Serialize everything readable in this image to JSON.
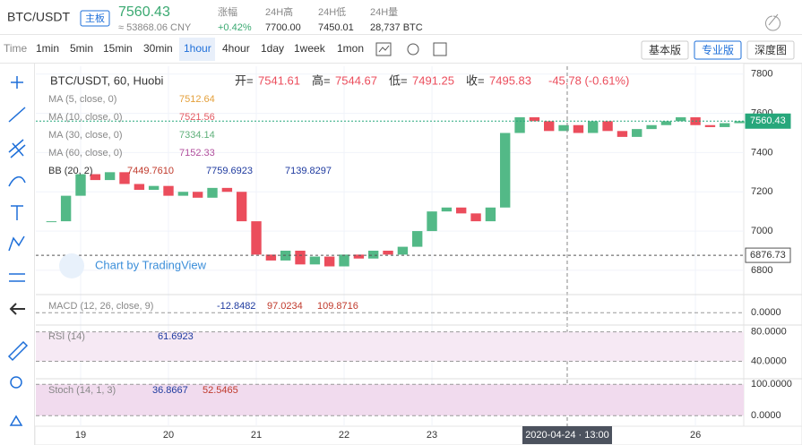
{
  "header": {
    "pair": "BTC/USDT",
    "badge": "主板",
    "price": "7560.43",
    "cny": "≈ 53868.06 CNY",
    "stats": [
      {
        "label": "涨幅",
        "value": "+0.42%"
      },
      {
        "label": "24H高",
        "value": "7700.00"
      },
      {
        "label": "24H低",
        "value": "7450.01"
      },
      {
        "label": "24H量",
        "value": "28,737 BTC"
      }
    ]
  },
  "toolbar": {
    "time_label": "Time",
    "intervals": [
      "1min",
      "5min",
      "15min",
      "30min",
      "1hour",
      "4hour",
      "1day",
      "1week",
      "1mon"
    ],
    "active_interval": 4,
    "views": [
      "基本版",
      "专业版",
      "深度图"
    ],
    "active_view": 1
  },
  "chart_data": {
    "type": "candlestick",
    "title": "BTC/USDT, 60, Huobi",
    "ohlc": [
      {
        "label": "开=",
        "value": "7541.61"
      },
      {
        "label": "高=",
        "value": "7544.67"
      },
      {
        "label": "低=",
        "value": "7491.25"
      },
      {
        "label": "收=",
        "value": "7495.83"
      }
    ],
    "change": "-45.78 (-0.61%)",
    "x": [
      18.667,
      18.833,
      19.0,
      19.167,
      19.333,
      19.5,
      19.667,
      19.833,
      20.0,
      20.167,
      20.333,
      20.5,
      20.667,
      20.833,
      21.0,
      21.167,
      21.333,
      21.5,
      21.667,
      21.833,
      22.0,
      22.167,
      22.333,
      22.5,
      22.667,
      22.833,
      23.0,
      23.167,
      23.333,
      23.5,
      23.667,
      23.833,
      24.0,
      24.167,
      24.333,
      24.5,
      24.667,
      24.833,
      25.0,
      25.167,
      25.333,
      25.5,
      25.667,
      25.833,
      26.0,
      26.167,
      26.333,
      26.5
    ],
    "close": [
      7050,
      7180,
      7290,
      7260,
      7300,
      7240,
      7210,
      7230,
      7180,
      7200,
      7170,
      7220,
      7200,
      7050,
      6880,
      6850,
      6900,
      6830,
      6870,
      6820,
      6880,
      6860,
      6900,
      6880,
      6920,
      7000,
      7100,
      7120,
      7090,
      7050,
      7120,
      7500,
      7580,
      7560,
      7510,
      7540,
      7500,
      7560,
      7510,
      7480,
      7520,
      7540,
      7560,
      7580,
      7540,
      7530,
      7550,
      7560
    ],
    "up_color": "#53b987",
    "down_color": "#eb4d5c",
    "xlim": [
      18.49,
      26.55
    ],
    "xticks": [
      19,
      20,
      21,
      22,
      23,
      26
    ],
    "ylim": [
      6690,
      7840
    ],
    "yticks": [
      6800,
      7000,
      7200,
      7400,
      7600,
      7800
    ],
    "last_price": {
      "value": 7560.43,
      "label": "7560.43"
    },
    "marker_price": {
      "value": 6876.73,
      "label": "6876.73"
    },
    "crosshair": {
      "x": 24.54,
      "label": "2020-04-24 · 13:00"
    },
    "watermark": "Chart by TradingView",
    "legends": [
      {
        "name": "MA (5, close, 0)",
        "value": "7512.64"
      },
      {
        "name": "MA (10, close, 0)",
        "value": "7521.56"
      },
      {
        "name": "MA (30, close, 0)",
        "value": "7334.14"
      },
      {
        "name": "MA (60, close, 0)",
        "value": "7152.33"
      }
    ],
    "bb": {
      "name": "BB (20, 2)",
      "values": [
        "7449.7610",
        "7759.6923",
        "7139.8297"
      ]
    },
    "panes": [
      {
        "name": "MACD (12, 26, close, 9)",
        "values": [
          "-12.8482",
          "97.0234",
          "109.8716"
        ],
        "ylim": [
          -100,
          150
        ],
        "yticks": [
          {
            "value": 0,
            "label": "0.0000"
          }
        ]
      },
      {
        "name": "RSI (14)",
        "values": [
          "61.6923"
        ],
        "ylim": [
          20,
          88
        ],
        "yticks": [
          {
            "value": 80,
            "label": "80.0000"
          },
          {
            "value": 40,
            "label": "40.0000"
          }
        ]
      },
      {
        "name": "Stoch (14, 1, 3)",
        "values": [
          "36.8667",
          "52.5465"
        ],
        "ylim": [
          -28,
          115
        ],
        "yticks": [
          {
            "value": 100,
            "label": "100.0000"
          },
          {
            "value": 0,
            "label": "0.0000"
          }
        ]
      }
    ]
  }
}
